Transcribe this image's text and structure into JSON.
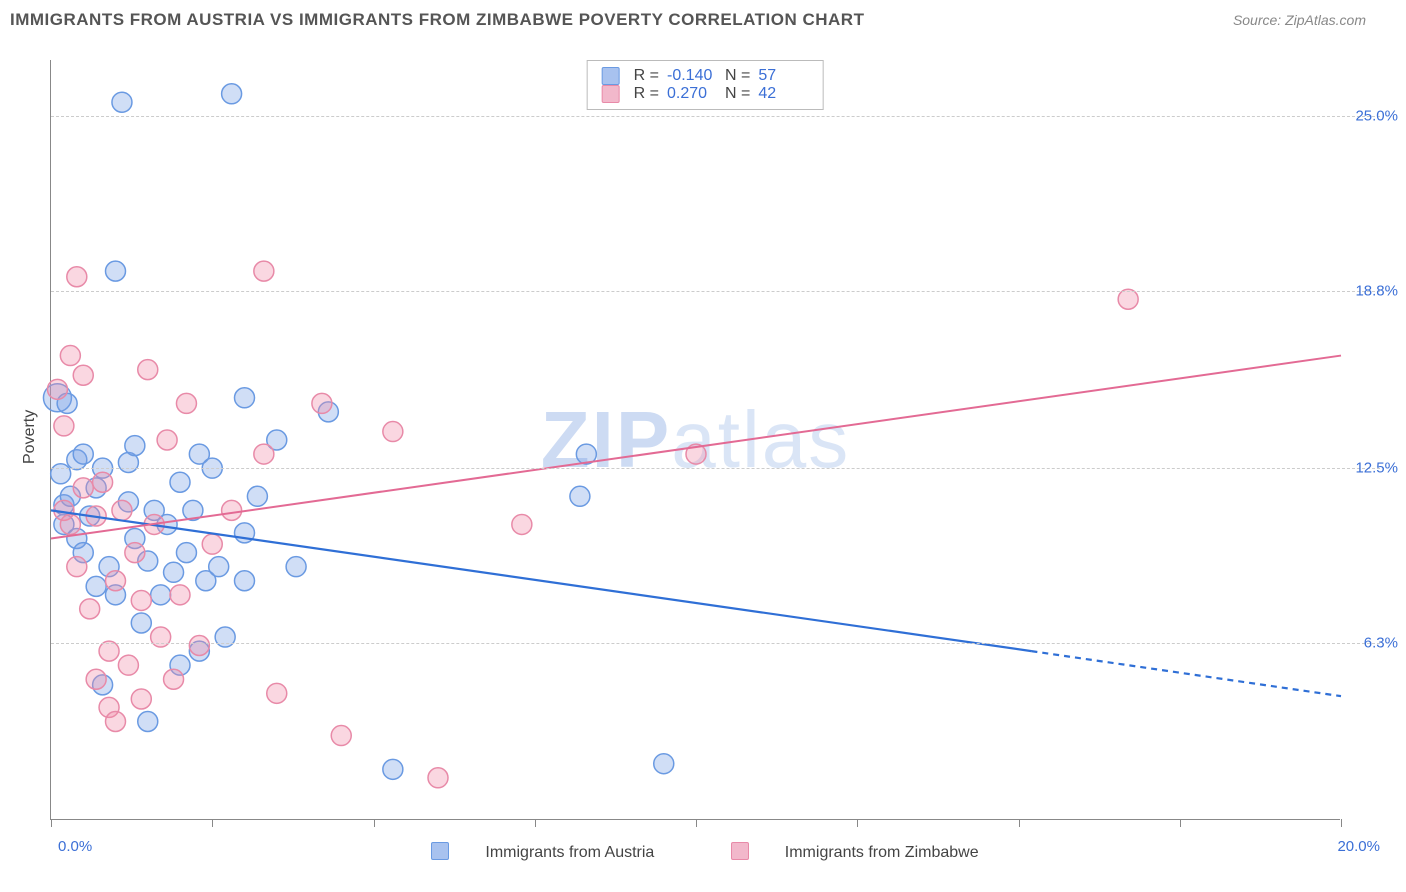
{
  "header": {
    "title": "IMMIGRANTS FROM AUSTRIA VS IMMIGRANTS FROM ZIMBABWE POVERTY CORRELATION CHART",
    "source_label": "Source:",
    "source_name": "ZipAtlas.com"
  },
  "watermark": {
    "zip": "ZIP",
    "atlas": "atlas"
  },
  "chart": {
    "type": "scatter",
    "ylabel": "Poverty",
    "xlim": [
      0,
      20
    ],
    "ylim": [
      0,
      27
    ],
    "grid_color": "#cccccc",
    "axis_color": "#888888",
    "tick_label_color": "#3b6fd6",
    "background": "#ffffff",
    "x_ticks": [
      0,
      2.5,
      5,
      7.5,
      10,
      12.5,
      15,
      17.5,
      20
    ],
    "x_tick_labels": {
      "left": "0.0%",
      "right": "20.0%"
    },
    "y_gridlines": [
      {
        "value": 6.3,
        "label": "6.3%"
      },
      {
        "value": 12.5,
        "label": "12.5%"
      },
      {
        "value": 18.8,
        "label": "18.8%"
      },
      {
        "value": 25.0,
        "label": "25.0%"
      }
    ],
    "series": [
      {
        "name": "Immigrants from Austria",
        "color_fill": "rgba(120,160,230,0.35)",
        "color_stroke": "#6a9ae2",
        "swatch_fill": "#a8c2ef",
        "swatch_border": "#6a9ae2",
        "marker_r": 10,
        "line_color": "#2f6fd6",
        "line_width": 2.2,
        "regression": {
          "x1": 0,
          "y1": 11.0,
          "x2": 15.2,
          "y2": 6.0,
          "x3": 20,
          "y3": 4.4,
          "dash_after": 15.2
        },
        "R_label": "R =",
        "R_value": "-0.140",
        "N_label": "N =",
        "N_value": "57",
        "points": [
          [
            0.1,
            15.0,
            14
          ],
          [
            0.15,
            12.3
          ],
          [
            0.2,
            11.2
          ],
          [
            0.2,
            10.5
          ],
          [
            0.25,
            14.8
          ],
          [
            0.3,
            11.5
          ],
          [
            0.4,
            12.8
          ],
          [
            0.4,
            10.0
          ],
          [
            0.5,
            9.5
          ],
          [
            0.5,
            13.0
          ],
          [
            0.6,
            10.8
          ],
          [
            0.7,
            8.3
          ],
          [
            0.7,
            11.8
          ],
          [
            0.8,
            4.8
          ],
          [
            0.8,
            12.5
          ],
          [
            0.9,
            9.0
          ],
          [
            1.0,
            19.5
          ],
          [
            1.0,
            8.0
          ],
          [
            1.1,
            25.5
          ],
          [
            1.2,
            11.3
          ],
          [
            1.2,
            12.7
          ],
          [
            1.3,
            13.3
          ],
          [
            1.3,
            10.0
          ],
          [
            1.4,
            7.0
          ],
          [
            1.5,
            3.5
          ],
          [
            1.5,
            9.2
          ],
          [
            1.6,
            11.0
          ],
          [
            1.7,
            8.0
          ],
          [
            1.8,
            10.5
          ],
          [
            1.9,
            8.8
          ],
          [
            2.0,
            5.5
          ],
          [
            2.0,
            12.0
          ],
          [
            2.1,
            9.5
          ],
          [
            2.2,
            11.0
          ],
          [
            2.3,
            13.0
          ],
          [
            2.3,
            6.0
          ],
          [
            2.4,
            8.5
          ],
          [
            2.5,
            12.5
          ],
          [
            2.6,
            9.0
          ],
          [
            2.7,
            6.5
          ],
          [
            2.8,
            25.8
          ],
          [
            3.0,
            10.2
          ],
          [
            3.0,
            15.0
          ],
          [
            3.0,
            8.5
          ],
          [
            3.2,
            11.5
          ],
          [
            3.5,
            13.5
          ],
          [
            3.8,
            9.0
          ],
          [
            4.3,
            14.5
          ],
          [
            5.3,
            1.8
          ],
          [
            8.2,
            11.5
          ],
          [
            8.3,
            13.0
          ],
          [
            9.5,
            2.0
          ]
        ]
      },
      {
        "name": "Immigrants from Zimbabwe",
        "color_fill": "rgba(240,140,170,0.35)",
        "color_stroke": "#e88aa8",
        "swatch_fill": "#f2b8cb",
        "swatch_border": "#e88aa8",
        "marker_r": 10,
        "line_color": "#e36a94",
        "line_width": 2,
        "regression": {
          "x1": 0,
          "y1": 10.0,
          "x2": 20,
          "y2": 16.5,
          "dash_after": null
        },
        "R_label": "R =",
        "R_value": "0.270",
        "N_label": "N =",
        "N_value": "42",
        "points": [
          [
            0.1,
            15.3
          ],
          [
            0.2,
            14.0
          ],
          [
            0.2,
            11.0
          ],
          [
            0.3,
            16.5
          ],
          [
            0.3,
            10.5
          ],
          [
            0.4,
            9.0
          ],
          [
            0.4,
            19.3
          ],
          [
            0.5,
            11.8
          ],
          [
            0.5,
            15.8
          ],
          [
            0.6,
            7.5
          ],
          [
            0.7,
            10.8
          ],
          [
            0.7,
            5.0
          ],
          [
            0.8,
            12.0
          ],
          [
            0.9,
            6.0
          ],
          [
            0.9,
            4.0
          ],
          [
            1.0,
            8.5
          ],
          [
            1.0,
            3.5
          ],
          [
            1.1,
            11.0
          ],
          [
            1.2,
            5.5
          ],
          [
            1.3,
            9.5
          ],
          [
            1.4,
            4.3
          ],
          [
            1.4,
            7.8
          ],
          [
            1.5,
            16.0
          ],
          [
            1.6,
            10.5
          ],
          [
            1.7,
            6.5
          ],
          [
            1.8,
            13.5
          ],
          [
            1.9,
            5.0
          ],
          [
            2.0,
            8.0
          ],
          [
            2.1,
            14.8
          ],
          [
            2.3,
            6.2
          ],
          [
            2.5,
            9.8
          ],
          [
            2.8,
            11.0
          ],
          [
            3.3,
            19.5
          ],
          [
            3.3,
            13.0
          ],
          [
            3.5,
            4.5
          ],
          [
            4.2,
            14.8
          ],
          [
            4.5,
            3.0
          ],
          [
            5.3,
            13.8
          ],
          [
            6.0,
            1.5
          ],
          [
            7.3,
            10.5
          ],
          [
            10.0,
            13.0
          ],
          [
            16.7,
            18.5
          ]
        ]
      }
    ],
    "bottom_legend_label_a": "Immigrants from Austria",
    "bottom_legend_label_b": "Immigrants from Zimbabwe"
  }
}
